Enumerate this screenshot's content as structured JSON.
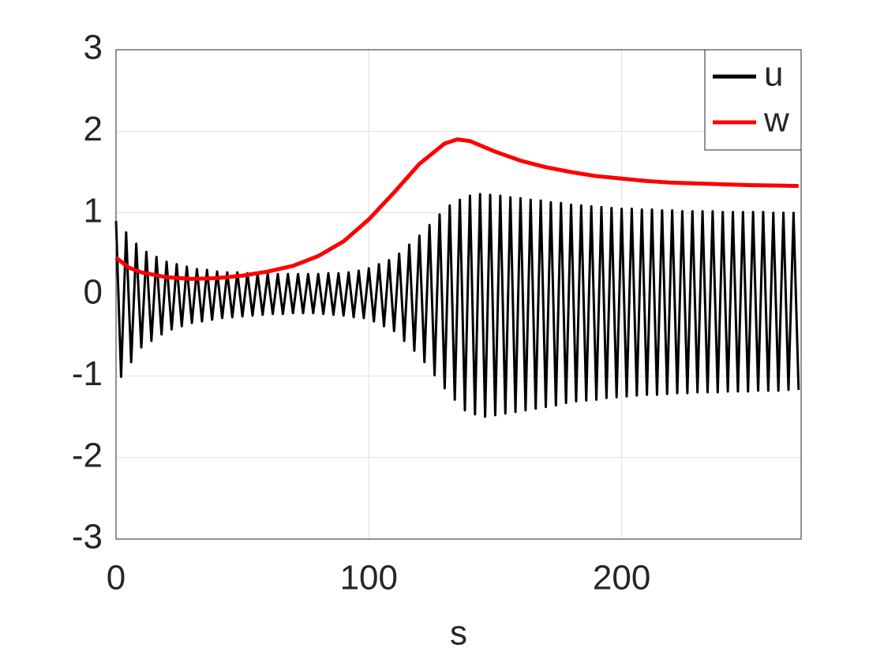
{
  "chart_data": {
    "type": "line",
    "xlabel": "s",
    "xlim": [
      0,
      271
    ],
    "ylim": [
      -3,
      3
    ],
    "xticks": [
      0,
      100,
      200
    ],
    "yticks": [
      -3,
      -2,
      -1,
      0,
      1,
      2,
      3
    ],
    "grid": true,
    "legend": "top-right",
    "series": [
      {
        "name": "u",
        "color": "#000000",
        "x": [
          0,
          2,
          4,
          6,
          8,
          10,
          12,
          14,
          16,
          18,
          20,
          22,
          24,
          26,
          28,
          30,
          32,
          34,
          36,
          38,
          40,
          42,
          44,
          46,
          48,
          50,
          52,
          54,
          56,
          58,
          60,
          62,
          64,
          66,
          68,
          70,
          72,
          74,
          76,
          78,
          80,
          82,
          84,
          86,
          88,
          90,
          92,
          94,
          96,
          98,
          100,
          102,
          104,
          106,
          108,
          110,
          112,
          114,
          116,
          118,
          120,
          122,
          124,
          126,
          128,
          130,
          132,
          134,
          136,
          138,
          140,
          142,
          144,
          146,
          148,
          150,
          152,
          154,
          156,
          158,
          160,
          162,
          164,
          166,
          168,
          170,
          172,
          174,
          176,
          178,
          180,
          182,
          184,
          186,
          188,
          190,
          192,
          194,
          196,
          198,
          200,
          202,
          204,
          206,
          208,
          210,
          212,
          214,
          216,
          218,
          220,
          222,
          224,
          226,
          228,
          230,
          232,
          234,
          236,
          238,
          240,
          242,
          244,
          246,
          248,
          250,
          252,
          254,
          256,
          258,
          260,
          262,
          264,
          266,
          268,
          270
        ],
        "values": [
          0.9,
          -1.01,
          0.76,
          -0.83,
          0.62,
          -0.65,
          0.52,
          -0.57,
          0.46,
          -0.49,
          0.4,
          -0.43,
          0.37,
          -0.39,
          0.34,
          -0.35,
          0.31,
          -0.33,
          0.3,
          -0.31,
          0.28,
          -0.29,
          0.27,
          -0.28,
          0.27,
          -0.27,
          0.26,
          -0.26,
          0.25,
          -0.25,
          0.25,
          -0.24,
          0.25,
          -0.24,
          0.25,
          -0.23,
          0.25,
          -0.23,
          0.25,
          -0.23,
          0.25,
          -0.24,
          0.26,
          -0.25,
          0.26,
          -0.26,
          0.27,
          -0.28,
          0.29,
          -0.29,
          0.32,
          -0.33,
          0.37,
          -0.39,
          0.42,
          -0.45,
          0.5,
          -0.57,
          0.61,
          -0.69,
          0.72,
          -0.83,
          0.85,
          -0.99,
          0.98,
          -1.15,
          1.09,
          -1.29,
          1.16,
          -1.42,
          1.21,
          -1.47,
          1.23,
          -1.5,
          1.22,
          -1.48,
          1.21,
          -1.46,
          1.19,
          -1.44,
          1.18,
          -1.42,
          1.16,
          -1.4,
          1.15,
          -1.38,
          1.13,
          -1.36,
          1.12,
          -1.33,
          1.1,
          -1.31,
          1.09,
          -1.3,
          1.08,
          -1.29,
          1.07,
          -1.27,
          1.06,
          -1.26,
          1.05,
          -1.25,
          1.05,
          -1.24,
          1.04,
          -1.23,
          1.04,
          -1.23,
          1.03,
          -1.22,
          1.03,
          -1.21,
          1.02,
          -1.21,
          1.02,
          -1.2,
          1.02,
          -1.2,
          1.02,
          -1.2,
          1.01,
          -1.19,
          1.01,
          -1.19,
          1.01,
          -1.19,
          1.01,
          -1.18,
          1.01,
          -1.18,
          1.0,
          -1.18,
          1.0,
          -1.17,
          1.0,
          -1.17
        ]
      },
      {
        "name": "w",
        "color": "#ff0000",
        "x": [
          0,
          5,
          10,
          20,
          30,
          40,
          50,
          60,
          70,
          80,
          90,
          100,
          110,
          120,
          130,
          135,
          140,
          150,
          160,
          170,
          180,
          190,
          200,
          210,
          220,
          230,
          240,
          250,
          260,
          270
        ],
        "values": [
          0.45,
          0.33,
          0.27,
          0.21,
          0.19,
          0.2,
          0.23,
          0.28,
          0.35,
          0.47,
          0.65,
          0.92,
          1.25,
          1.6,
          1.85,
          1.9,
          1.88,
          1.75,
          1.64,
          1.56,
          1.5,
          1.45,
          1.42,
          1.39,
          1.37,
          1.36,
          1.35,
          1.34,
          1.335,
          1.33
        ]
      }
    ]
  }
}
